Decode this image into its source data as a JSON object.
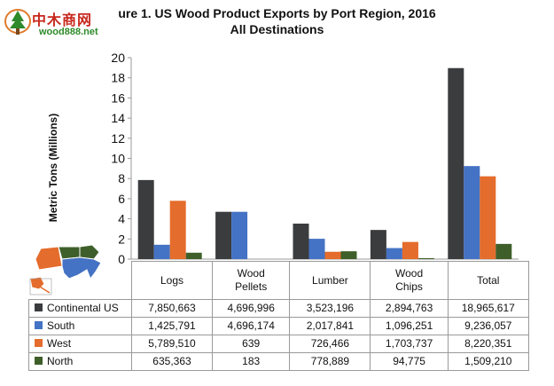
{
  "logo": {
    "brand": "中木商网",
    "site": "wood888.net"
  },
  "colors": {
    "continental": "#3b3c3e",
    "south": "#4472c4",
    "west": "#e46c2c",
    "north": "#3f5f2a"
  },
  "icons": {
    "logo": "tree-logo-icon",
    "map": "us-regions-map-icon"
  },
  "chart_data": {
    "type": "bar",
    "title": "ure 1. US Wood Product Exports by Port Region, 2016",
    "subtitle": "All Destinations",
    "xlabel": "",
    "ylabel": "Metric Tons (Millions)",
    "ylim": [
      0,
      20
    ],
    "yticks": [
      0,
      2,
      4,
      6,
      8,
      10,
      12,
      14,
      16,
      18,
      20
    ],
    "grid": false,
    "legend": "data-table",
    "categories": [
      "Logs",
      "Wood Pellets",
      "Lumber",
      "Wood Chips",
      "Total"
    ],
    "series": [
      {
        "name": "Continental US",
        "color": "#3b3c3e",
        "values": [
          7850663,
          4696996,
          3523196,
          2894763,
          18965617
        ],
        "labels": [
          "7,850,663",
          "4,696,996",
          "3,523,196",
          "2,894,763",
          "18,965,617"
        ]
      },
      {
        "name": "South",
        "color": "#4472c4",
        "values": [
          1425791,
          4696174,
          2017841,
          1096251,
          9236057
        ],
        "labels": [
          "1,425,791",
          "4,696,174",
          "2,017,841",
          "1,096,251",
          "9,236,057"
        ]
      },
      {
        "name": "West",
        "color": "#e46c2c",
        "values": [
          5789510,
          639,
          726466,
          1703737,
          8220351
        ],
        "labels": [
          "5,789,510",
          "639",
          "726,466",
          "1,703,737",
          "8,220,351"
        ]
      },
      {
        "name": "North",
        "color": "#3f5f2a",
        "values": [
          635363,
          183,
          778889,
          94775,
          1509210
        ],
        "labels": [
          "635,363",
          "183",
          "778,889",
          "94,775",
          "1,509,210"
        ]
      }
    ]
  }
}
